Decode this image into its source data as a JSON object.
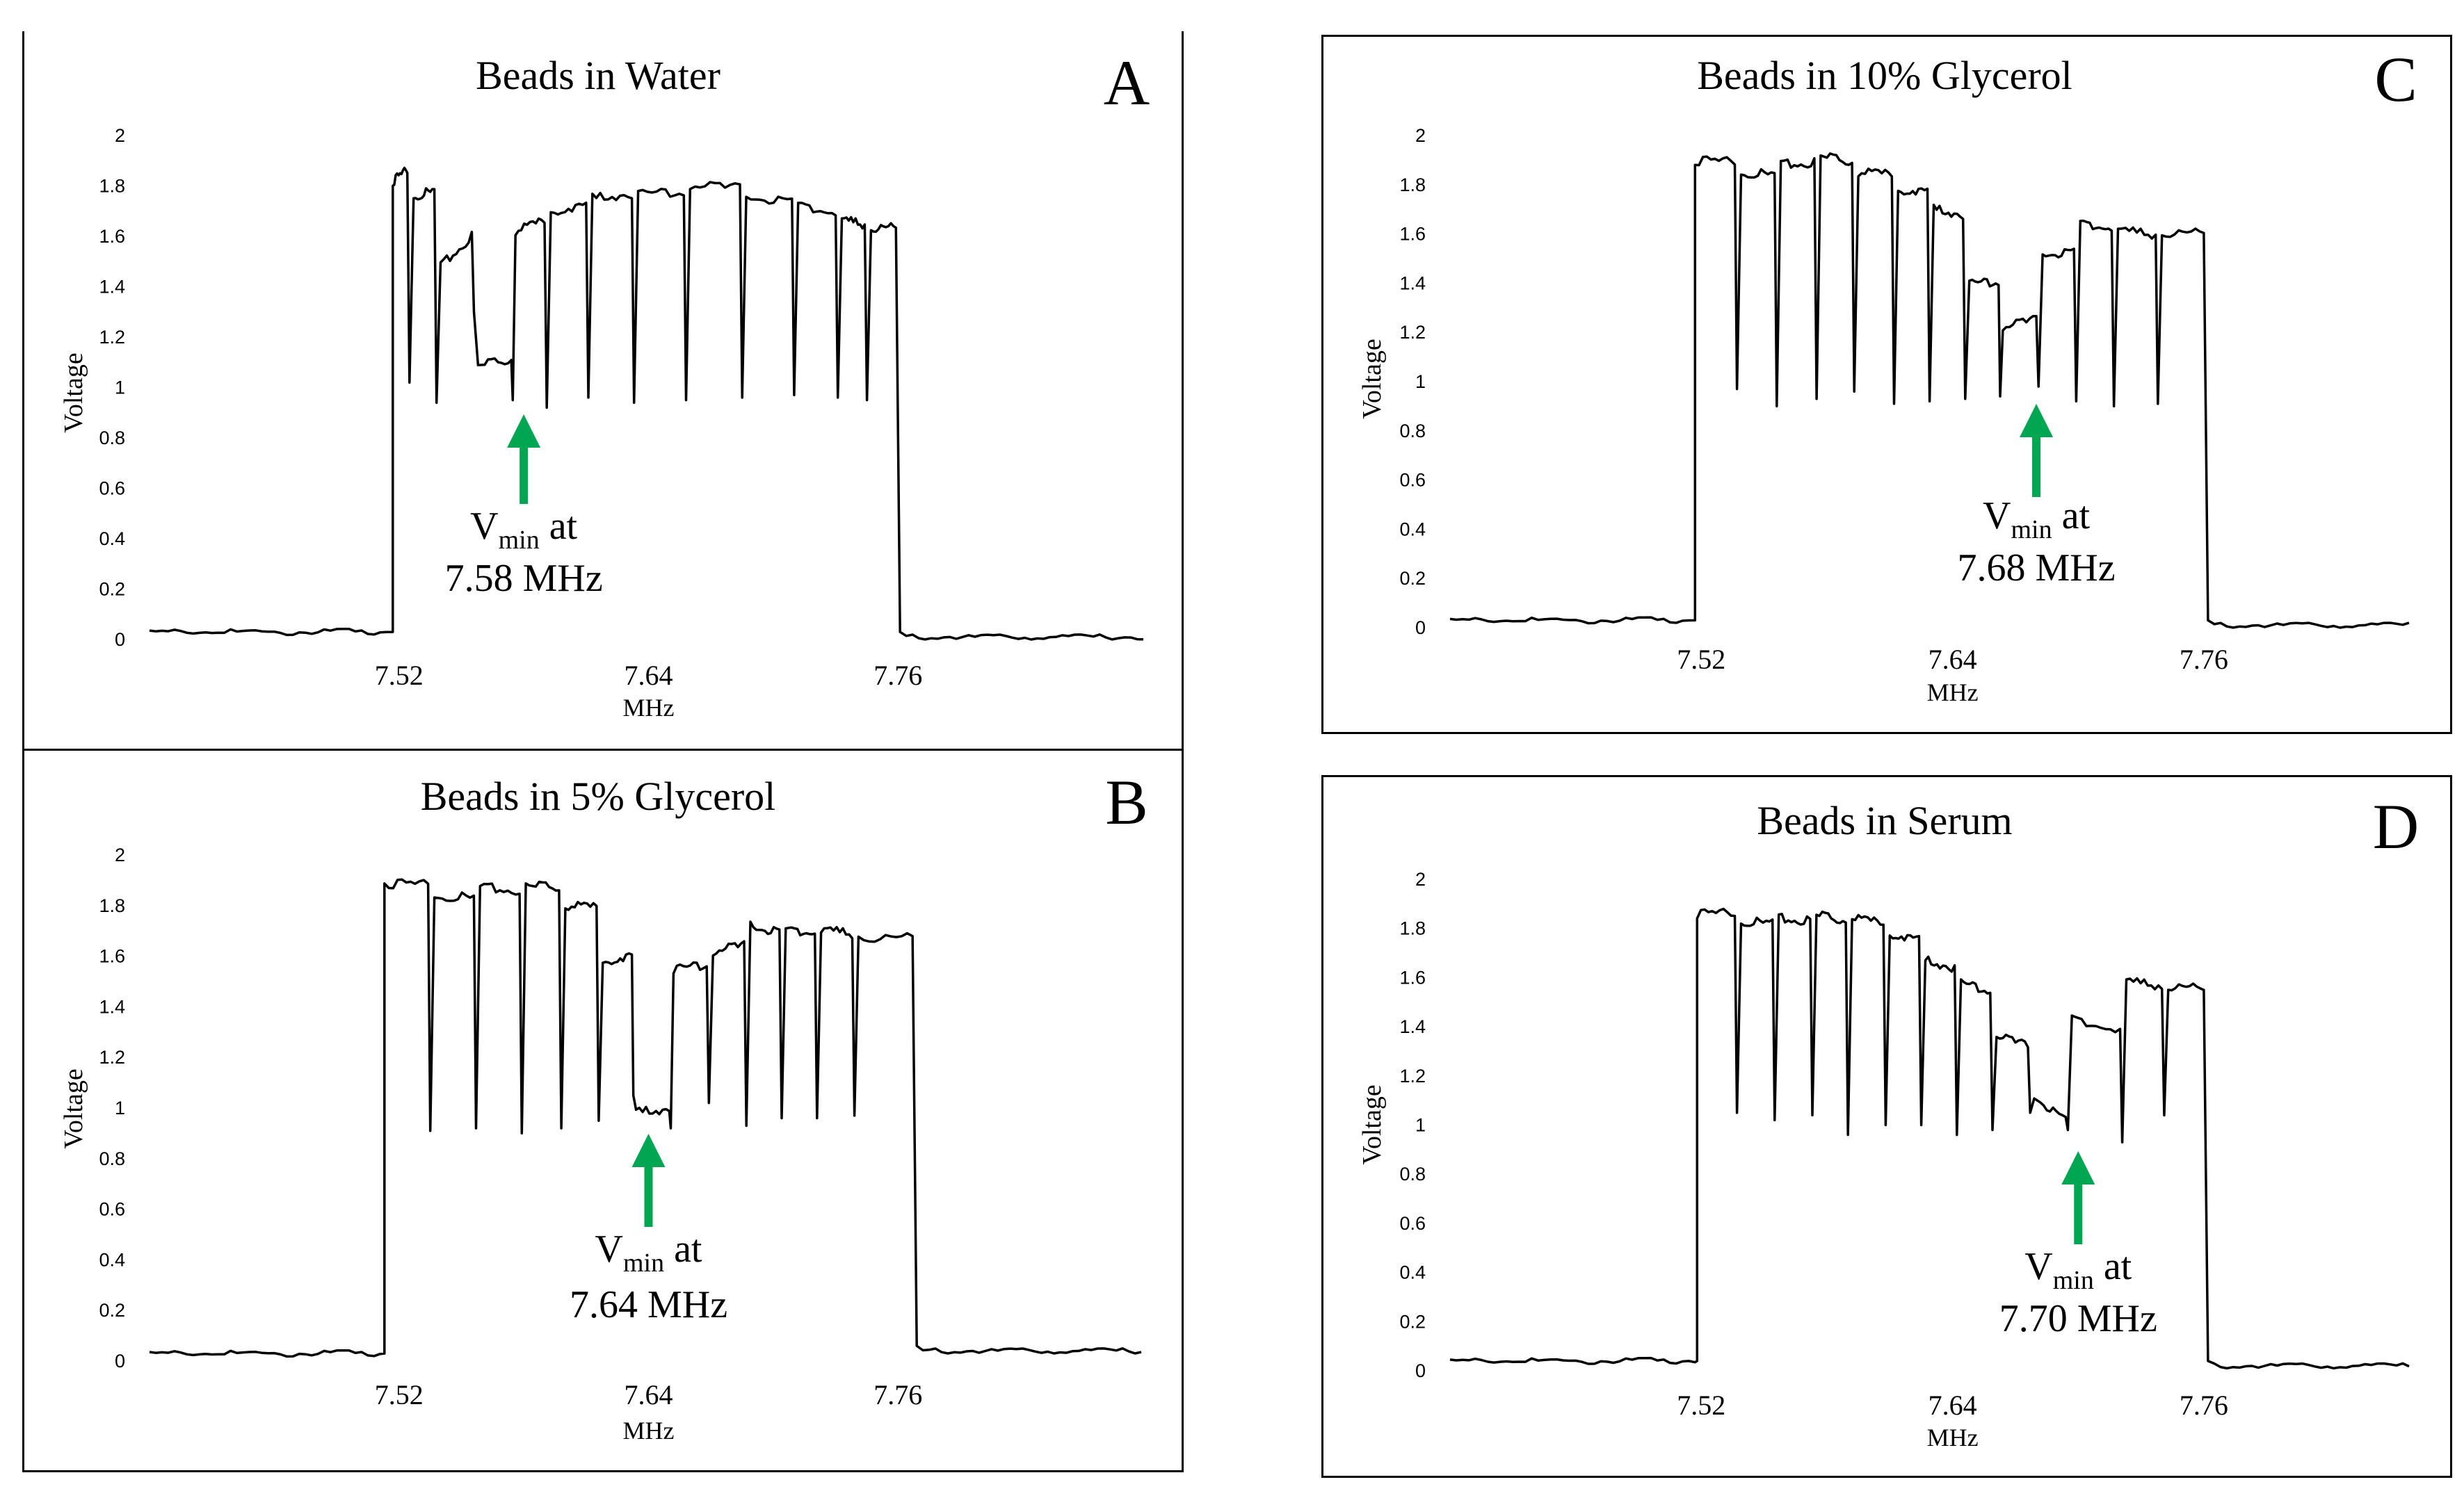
{
  "colors": {
    "arrow": "#00a651",
    "line": "#000000"
  },
  "chart_data": [
    {
      "type": "line",
      "panel_letter": "A",
      "title": "Beads in Water",
      "xlabel": "MHz",
      "ylabel": "Voltage",
      "ylim": [
        0,
        2
      ],
      "xlim": [
        7.4,
        7.88
      ],
      "y_ticks": [
        "2",
        "1.8",
        "1.6",
        "1.4",
        "1.2",
        "1",
        "0.8",
        "0.6",
        "0.4",
        "0.2",
        "0"
      ],
      "x_ticks": [
        "7.52",
        "7.64",
        "7.76"
      ],
      "annotation": {
        "v": "V",
        "sub": "min",
        "at": " at",
        "freq": "7.58 MHz",
        "x": 7.58,
        "y": 0.95
      },
      "baseline_left": 0.03,
      "baseline_right": 0.01,
      "rise_x": 7.517,
      "fall_x": 7.759,
      "plateaus": [
        {
          "x0": 7.517,
          "x1": 7.524,
          "y0": 1.82,
          "y1": 1.86
        },
        {
          "x0": 7.527,
          "x1": 7.537,
          "y0": 1.76,
          "y1": 1.78
        },
        {
          "x0": 7.54,
          "x1": 7.555,
          "y0": 1.48,
          "y1": 1.6
        },
        {
          "x0": 7.558,
          "x1": 7.574,
          "y0": 1.08,
          "y1": 1.12
        },
        {
          "x0": 7.576,
          "x1": 7.59,
          "y0": 1.62,
          "y1": 1.66
        },
        {
          "x0": 7.593,
          "x1": 7.61,
          "y0": 1.7,
          "y1": 1.72
        },
        {
          "x0": 7.613,
          "x1": 7.632,
          "y0": 1.75,
          "y1": 1.77
        },
        {
          "x0": 7.635,
          "x1": 7.657,
          "y0": 1.77,
          "y1": 1.78
        },
        {
          "x0": 7.66,
          "x1": 7.684,
          "y0": 1.8,
          "y1": 1.79
        },
        {
          "x0": 7.687,
          "x1": 7.709,
          "y0": 1.76,
          "y1": 1.74
        },
        {
          "x0": 7.712,
          "x1": 7.73,
          "y0": 1.72,
          "y1": 1.69
        },
        {
          "x0": 7.733,
          "x1": 7.744,
          "y0": 1.66,
          "y1": 1.65
        },
        {
          "x0": 7.747,
          "x1": 7.759,
          "y0": 1.64,
          "y1": 1.63
        }
      ],
      "dips": [
        1.02,
        0.94,
        1.3,
        0.95,
        0.92,
        0.96,
        0.94,
        0.95,
        0.96,
        0.97,
        0.96,
        0.95
      ]
    },
    {
      "type": "line",
      "panel_letter": "B",
      "title": "Beads in 5% Glycerol",
      "xlabel": "MHz",
      "ylabel": "Voltage",
      "ylim": [
        0,
        2
      ],
      "xlim": [
        7.4,
        7.88
      ],
      "y_ticks": [
        "2",
        "1.8",
        "1.6",
        "1.4",
        "1.2",
        "1",
        "0.8",
        "0.6",
        "0.4",
        "0.2",
        "0"
      ],
      "x_ticks": [
        "7.52",
        "7.64",
        "7.76"
      ],
      "annotation": {
        "v": "V",
        "sub": "min",
        "at": " at",
        "freq": "7.64 MHz",
        "x": 7.64,
        "y": 0.92
      },
      "baseline_left": 0.03,
      "baseline_right": 0.04,
      "rise_x": 7.513,
      "fall_x": 7.767,
      "plateaus": [
        {
          "x0": 7.513,
          "x1": 7.534,
          "y0": 1.89,
          "y1": 1.88
        },
        {
          "x0": 7.537,
          "x1": 7.556,
          "y0": 1.84,
          "y1": 1.83
        },
        {
          "x0": 7.559,
          "x1": 7.578,
          "y0": 1.87,
          "y1": 1.86
        },
        {
          "x0": 7.581,
          "x1": 7.597,
          "y0": 1.87,
          "y1": 1.88
        },
        {
          "x0": 7.6,
          "x1": 7.615,
          "y0": 1.8,
          "y1": 1.79
        },
        {
          "x0": 7.618,
          "x1": 7.632,
          "y0": 1.58,
          "y1": 1.6
        },
        {
          "x0": 7.634,
          "x1": 7.65,
          "y0": 0.98,
          "y1": 1.0
        },
        {
          "x0": 7.652,
          "x1": 7.668,
          "y0": 1.55,
          "y1": 1.57
        },
        {
          "x0": 7.671,
          "x1": 7.686,
          "y0": 1.62,
          "y1": 1.64
        },
        {
          "x0": 7.689,
          "x1": 7.703,
          "y0": 1.72,
          "y1": 1.7
        },
        {
          "x0": 7.706,
          "x1": 7.72,
          "y0": 1.7,
          "y1": 1.69
        },
        {
          "x0": 7.723,
          "x1": 7.738,
          "y0": 1.7,
          "y1": 1.69
        },
        {
          "x0": 7.741,
          "x1": 7.767,
          "y0": 1.68,
          "y1": 1.67
        }
      ],
      "dips": [
        0.91,
        0.92,
        0.9,
        0.92,
        0.95,
        1.05,
        0.92,
        1.02,
        0.93,
        0.96,
        0.96,
        0.97
      ]
    },
    {
      "type": "line",
      "panel_letter": "C",
      "title": "Beads in 10% Glycerol",
      "xlabel": "MHz",
      "ylabel": "Voltage",
      "ylim": [
        0,
        2
      ],
      "xlim": [
        7.4,
        7.86
      ],
      "y_ticks": [
        "2",
        "1.8",
        "1.6",
        "1.4",
        "1.2",
        "1",
        "0.8",
        "0.6",
        "0.4",
        "0.2",
        "0"
      ],
      "x_ticks": [
        "7.52",
        "7.64",
        "7.76"
      ],
      "annotation": {
        "v": "V",
        "sub": "min",
        "at": " at",
        "freq": "7.68 MHz",
        "x": 7.68,
        "y": 0.9
      },
      "baseline_left": 0.03,
      "baseline_right": 0.01,
      "rise_x": 7.517,
      "fall_x": 7.76,
      "plateaus": [
        {
          "x0": 7.517,
          "x1": 7.536,
          "y0": 1.9,
          "y1": 1.89
        },
        {
          "x0": 7.539,
          "x1": 7.555,
          "y0": 1.85,
          "y1": 1.84
        },
        {
          "x0": 7.558,
          "x1": 7.574,
          "y0": 1.88,
          "y1": 1.89
        },
        {
          "x0": 7.577,
          "x1": 7.592,
          "y0": 1.91,
          "y1": 1.9
        },
        {
          "x0": 7.595,
          "x1": 7.611,
          "y0": 1.85,
          "y1": 1.84
        },
        {
          "x0": 7.614,
          "x1": 7.628,
          "y0": 1.78,
          "y1": 1.77
        },
        {
          "x0": 7.631,
          "x1": 7.645,
          "y0": 1.7,
          "y1": 1.68
        },
        {
          "x0": 7.648,
          "x1": 7.662,
          "y0": 1.4,
          "y1": 1.41
        },
        {
          "x0": 7.664,
          "x1": 7.68,
          "y0": 1.22,
          "y1": 1.25
        },
        {
          "x0": 7.683,
          "x1": 7.698,
          "y0": 1.52,
          "y1": 1.53
        },
        {
          "x0": 7.701,
          "x1": 7.716,
          "y0": 1.64,
          "y1": 1.62
        },
        {
          "x0": 7.719,
          "x1": 7.737,
          "y0": 1.61,
          "y1": 1.6
        },
        {
          "x0": 7.74,
          "x1": 7.76,
          "y0": 1.61,
          "y1": 1.6
        }
      ],
      "dips": [
        0.97,
        0.9,
        0.93,
        0.96,
        0.91,
        0.92,
        0.93,
        0.94,
        0.98,
        0.92,
        0.9,
        0.91
      ]
    },
    {
      "type": "line",
      "panel_letter": "D",
      "title": "Beads in Serum",
      "xlabel": "MHz",
      "ylabel": "Voltage",
      "ylim": [
        0,
        2
      ],
      "xlim": [
        7.4,
        7.86
      ],
      "y_ticks": [
        "2",
        "1.8",
        "1.6",
        "1.4",
        "1.2",
        "1",
        "0.8",
        "0.6",
        "0.4",
        "0.2",
        "0"
      ],
      "x_ticks": [
        "7.52",
        "7.64",
        "7.76"
      ],
      "annotation": {
        "v": "V",
        "sub": "min",
        "at": " at",
        "freq": "7.70 MHz",
        "x": 7.7,
        "y": 0.92
      },
      "baseline_left": 0.04,
      "baseline_right": 0.02,
      "rise_x": 7.518,
      "fall_x": 7.76,
      "plateaus": [
        {
          "x0": 7.518,
          "x1": 7.536,
          "y0": 1.86,
          "y1": 1.86
        },
        {
          "x0": 7.539,
          "x1": 7.554,
          "y0": 1.83,
          "y1": 1.82
        },
        {
          "x0": 7.557,
          "x1": 7.572,
          "y0": 1.84,
          "y1": 1.83
        },
        {
          "x0": 7.575,
          "x1": 7.589,
          "y0": 1.85,
          "y1": 1.84
        },
        {
          "x0": 7.592,
          "x1": 7.607,
          "y0": 1.84,
          "y1": 1.82
        },
        {
          "x0": 7.61,
          "x1": 7.624,
          "y0": 1.78,
          "y1": 1.75
        },
        {
          "x0": 7.627,
          "x1": 7.641,
          "y0": 1.67,
          "y1": 1.64
        },
        {
          "x0": 7.644,
          "x1": 7.658,
          "y0": 1.58,
          "y1": 1.55
        },
        {
          "x0": 7.661,
          "x1": 7.676,
          "y0": 1.36,
          "y1": 1.32
        },
        {
          "x0": 7.679,
          "x1": 7.694,
          "y0": 1.12,
          "y1": 1.02
        },
        {
          "x0": 7.697,
          "x1": 7.72,
          "y0": 1.43,
          "y1": 1.38
        },
        {
          "x0": 7.723,
          "x1": 7.74,
          "y0": 1.58,
          "y1": 1.57
        },
        {
          "x0": 7.743,
          "x1": 7.76,
          "y0": 1.57,
          "y1": 1.55
        }
      ],
      "dips": [
        1.05,
        1.02,
        1.04,
        0.96,
        1.0,
        1.0,
        0.96,
        0.98,
        1.05,
        0.98,
        0.93,
        1.04
      ]
    }
  ]
}
